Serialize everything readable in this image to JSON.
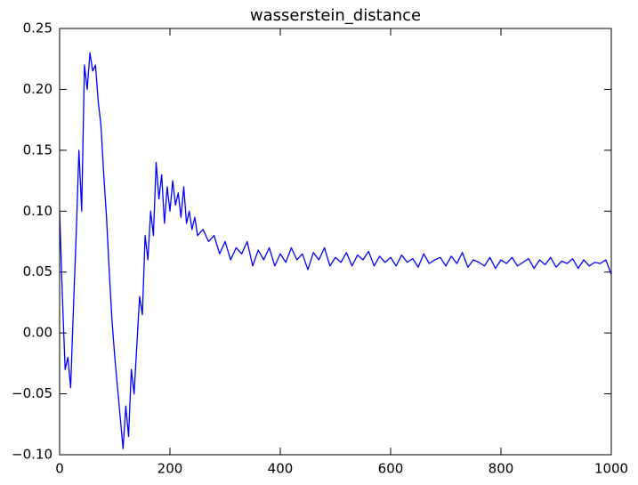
{
  "chart_data": {
    "type": "line",
    "title": "wasserstein_distance",
    "x": [
      0,
      5,
      10,
      15,
      20,
      25,
      30,
      35,
      40,
      45,
      50,
      55,
      60,
      65,
      70,
      75,
      80,
      85,
      90,
      95,
      100,
      105,
      110,
      115,
      120,
      125,
      130,
      135,
      140,
      145,
      150,
      155,
      160,
      165,
      170,
      175,
      180,
      185,
      190,
      195,
      200,
      205,
      210,
      215,
      220,
      225,
      230,
      235,
      240,
      245,
      250,
      260,
      270,
      280,
      290,
      300,
      310,
      320,
      330,
      340,
      350,
      360,
      370,
      380,
      390,
      400,
      410,
      420,
      430,
      440,
      450,
      460,
      470,
      480,
      490,
      500,
      510,
      520,
      530,
      540,
      550,
      560,
      570,
      580,
      590,
      600,
      610,
      620,
      630,
      640,
      650,
      660,
      670,
      680,
      690,
      700,
      710,
      720,
      730,
      740,
      750,
      760,
      770,
      780,
      790,
      800,
      810,
      820,
      830,
      840,
      850,
      860,
      870,
      880,
      890,
      900,
      910,
      920,
      930,
      940,
      950,
      960,
      970,
      980,
      990,
      1000
    ],
    "series": [
      {
        "color": "#0000ff",
        "values": [
          0.1,
          0.03,
          -0.03,
          -0.02,
          -0.045,
          0.02,
          0.08,
          0.15,
          0.1,
          0.22,
          0.2,
          0.23,
          0.215,
          0.22,
          0.19,
          0.17,
          0.13,
          0.095,
          0.05,
          0.01,
          -0.02,
          -0.045,
          -0.07,
          -0.095,
          -0.06,
          -0.085,
          -0.03,
          -0.05,
          -0.01,
          0.03,
          0.015,
          0.08,
          0.06,
          0.1,
          0.08,
          0.14,
          0.11,
          0.13,
          0.09,
          0.12,
          0.1,
          0.125,
          0.105,
          0.115,
          0.095,
          0.12,
          0.09,
          0.1,
          0.085,
          0.095,
          0.08,
          0.085,
          0.075,
          0.08,
          0.065,
          0.075,
          0.06,
          0.07,
          0.065,
          0.075,
          0.055,
          0.068,
          0.06,
          0.07,
          0.055,
          0.065,
          0.058,
          0.07,
          0.06,
          0.065,
          0.052,
          0.066,
          0.06,
          0.07,
          0.055,
          0.062,
          0.058,
          0.066,
          0.055,
          0.064,
          0.06,
          0.067,
          0.055,
          0.063,
          0.058,
          0.062,
          0.055,
          0.064,
          0.058,
          0.061,
          0.054,
          0.065,
          0.057,
          0.06,
          0.062,
          0.055,
          0.063,
          0.057,
          0.066,
          0.054,
          0.06,
          0.058,
          0.055,
          0.062,
          0.053,
          0.06,
          0.057,
          0.062,
          0.055,
          0.058,
          0.061,
          0.053,
          0.06,
          0.056,
          0.062,
          0.054,
          0.059,
          0.057,
          0.061,
          0.053,
          0.06,
          0.055,
          0.058,
          0.057,
          0.06,
          0.048
        ]
      }
    ],
    "xlim": [
      0,
      1000
    ],
    "xticks": [
      0,
      200,
      400,
      600,
      800,
      1000
    ],
    "ylim": [
      -0.1,
      0.25
    ],
    "yticks": [
      {
        "value": -0.1,
        "label": "−0.10"
      },
      {
        "value": -0.05,
        "label": "−0.05"
      },
      {
        "value": 0,
        "label": "0.00"
      },
      0.05,
      {
        "value": 0.1,
        "label": "0.10"
      },
      0.15,
      {
        "value": 0.2,
        "label": "0.20"
      },
      0.25
    ],
    "grid": false
  }
}
